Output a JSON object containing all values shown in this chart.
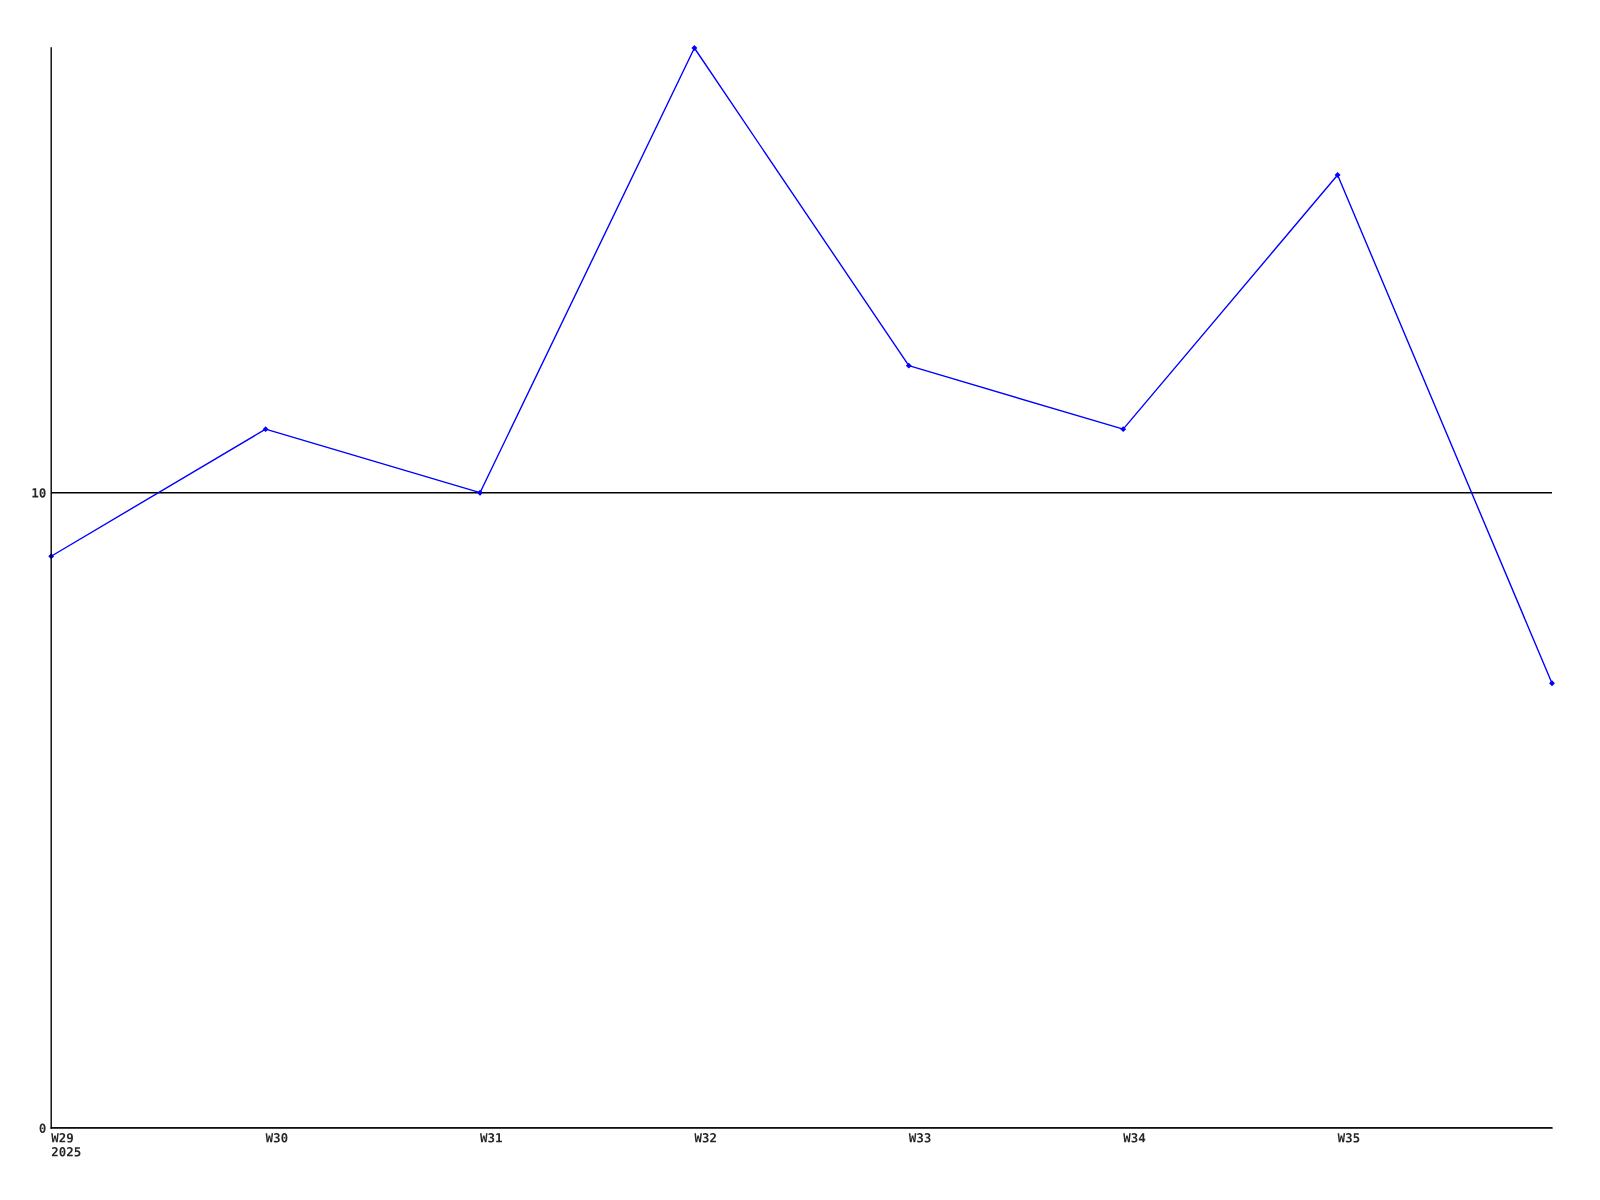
{
  "chart_data": {
    "type": "line",
    "categories": [
      "W29\n2025",
      "W30",
      "W31",
      "W32",
      "W33",
      "W34",
      "W35",
      null
    ],
    "series": [
      {
        "color": "#0000ff",
        "values": [
          9,
          11,
          10,
          17,
          12,
          11,
          15,
          7
        ]
      }
    ],
    "ylim": [
      0,
      17
    ],
    "yticks": [
      0,
      10
    ],
    "grid": "y",
    "marker": "diamond",
    "line_style": "solid"
  }
}
